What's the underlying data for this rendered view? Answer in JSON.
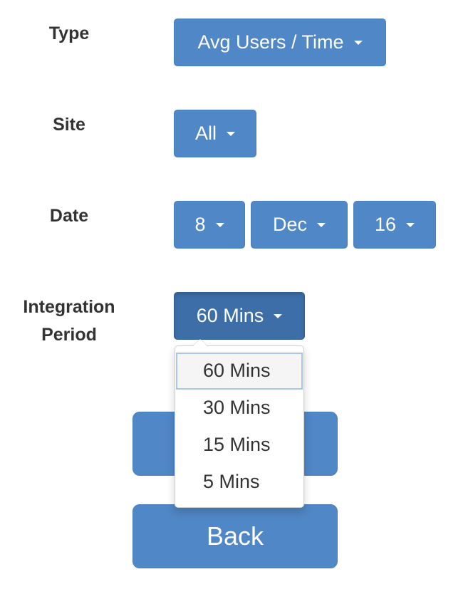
{
  "form": {
    "type": {
      "label": "Type",
      "value": "Avg Users / Time"
    },
    "site": {
      "label": "Site",
      "value": "All"
    },
    "date": {
      "label": "Date",
      "day": "8",
      "month": "Dec",
      "year": "16"
    },
    "integration": {
      "label_line1": "Integration",
      "label_line2": "Period",
      "value": "60 Mins"
    }
  },
  "integration_menu": {
    "options": [
      "60 Mins",
      "30 Mins",
      "15 Mins",
      "5 Mins"
    ],
    "selected": "60 Mins"
  },
  "actions": {
    "back_label": "Back"
  },
  "colors": {
    "button_primary": "#5087c6",
    "button_active": "#3d6ea8",
    "text": "#333333"
  }
}
